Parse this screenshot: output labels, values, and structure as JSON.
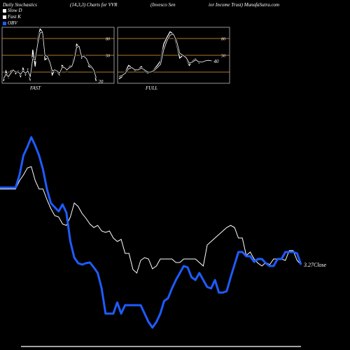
{
  "header": {
    "left": "Daily Stochastics",
    "mid": "(14,3,3) Charts for VVR",
    "right_a": "(Invesco  Sen",
    "right_b": "ior Income  Trust) MunafaSutra.com"
  },
  "legend": [
    {
      "label": "Slow  D",
      "color": "#ffffff"
    },
    {
      "label": "Fast K",
      "color": "#ffffff"
    },
    {
      "label": "OBV",
      "color": "#1e5cff"
    }
  ],
  "colors": {
    "price": "#ffffff",
    "obv": "#1e5cff",
    "grid": "#e8a040",
    "panel_border": "#bbbbbb"
  },
  "chart_data": [
    {
      "type": "line",
      "title": "FAST",
      "ylim": [
        0,
        100
      ],
      "ref_lines": [
        20,
        50,
        80
      ],
      "ref_labels": [
        "80",
        "50"
      ],
      "last_value_label": "20",
      "series": [
        {
          "name": "Fast K",
          "values": [
            4,
            22,
            10,
            22,
            25,
            17,
            22,
            12,
            27,
            15,
            25,
            5,
            60,
            30,
            78,
            97,
            92,
            42,
            45,
            35,
            15,
            25,
            20,
            15,
            32,
            28,
            22,
            30,
            32,
            48,
            70,
            65,
            45,
            50,
            45,
            30,
            28,
            22,
            4
          ]
        },
        {
          "name": "Slow  D",
          "values": [
            8,
            16,
            12,
            18,
            24,
            20,
            20,
            16,
            22,
            18,
            22,
            12,
            44,
            42,
            70,
            90,
            92,
            50,
            48,
            38,
            22,
            24,
            22,
            18,
            28,
            28,
            24,
            28,
            30,
            42,
            64,
            66,
            48,
            48,
            44,
            34,
            30,
            24,
            10
          ]
        }
      ]
    },
    {
      "type": "line",
      "title": "FULL",
      "ylim": [
        0,
        100
      ],
      "ref_lines": [
        20,
        50,
        80
      ],
      "ref_labels": [
        "80",
        "50"
      ],
      "last_value_label": "40",
      "series": [
        {
          "name": "Fast K",
          "values": [
            8,
            12,
            20,
            32,
            28,
            22,
            25,
            30,
            22,
            18,
            20,
            25,
            32,
            40,
            70,
            82,
            92,
            88,
            70,
            45,
            50,
            44,
            32,
            40,
            44,
            36,
            38,
            40,
            42,
            40
          ]
        },
        {
          "name": "Slow  D",
          "values": [
            12,
            14,
            18,
            26,
            28,
            24,
            24,
            27,
            24,
            20,
            20,
            23,
            28,
            34,
            60,
            76,
            86,
            88,
            76,
            54,
            50,
            46,
            36,
            38,
            42,
            38,
            38,
            40,
            41,
            40
          ]
        }
      ]
    },
    {
      "type": "line",
      "title": "",
      "last_value_label": "3.27Close",
      "series": [
        {
          "name": "Price",
          "values": [
            270,
            270,
            270,
            270,
            270,
            258,
            250,
            240,
            238,
            258,
            270,
            270,
            285,
            298,
            308,
            310,
            320,
            322,
            310,
            290,
            295,
            305,
            312,
            320,
            325,
            322,
            330,
            332,
            330,
            340,
            345,
            342,
            362,
            362,
            385,
            390,
            372,
            368,
            370,
            384,
            380,
            370,
            370,
            370,
            370,
            375,
            375,
            370,
            370,
            370,
            370,
            375,
            380,
            350,
            345,
            340,
            335,
            330,
            325,
            322,
            325,
            340,
            340,
            365,
            360,
            370,
            376,
            380,
            375,
            378,
            370,
            370,
            370,
            372,
            358,
            358,
            372,
            378
          ]
        },
        {
          "name": "OBV",
          "values": [
            268,
            268,
            268,
            268,
            268,
            250,
            222,
            210,
            196,
            208,
            222,
            242,
            270,
            290,
            296,
            302,
            292,
            304,
            345,
            368,
            376,
            378,
            376,
            375,
            382,
            390,
            412,
            448,
            448,
            448,
            432,
            448,
            436,
            436,
            436,
            436,
            436,
            448,
            460,
            468,
            460,
            448,
            430,
            426,
            412,
            400,
            390,
            380,
            382,
            396,
            400,
            390,
            400,
            410,
            412,
            400,
            418,
            418,
            416,
            396,
            378,
            360,
            360,
            366,
            366,
            374,
            370,
            370,
            376,
            380,
            380,
            370,
            370,
            360,
            360,
            360,
            362,
            378
          ]
        }
      ]
    }
  ]
}
